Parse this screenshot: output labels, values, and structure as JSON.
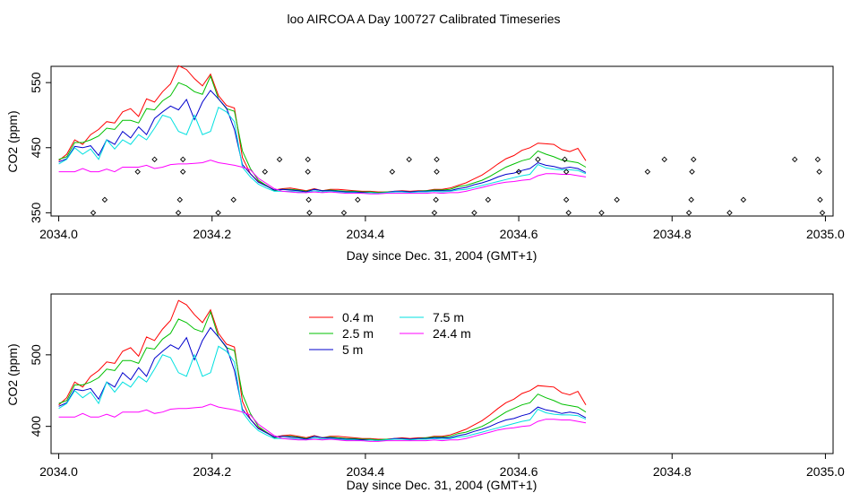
{
  "title": "loo AIRCOA A  Day 100727  Calibrated Timeseries",
  "chart_data": [
    {
      "type": "line",
      "xlabel": "Day since Dec. 31, 2004 (GMT+1)",
      "ylabel": "CO2 (ppm)",
      "xlim": [
        2033.99,
        2035.01
      ],
      "ylim": [
        345,
        575
      ],
      "x_ticks": [
        "2034.0",
        "2034.2",
        "2034.4",
        "2034.6",
        "2034.8",
        "2035.0"
      ],
      "y_ticks": [
        "350",
        "450",
        "550"
      ],
      "x_start": 2034.0,
      "x_step": 0.0104167,
      "series": [
        {
          "color": "#ff0000",
          "values": [
            430,
            440,
            462,
            455,
            470,
            478,
            490,
            488,
            505,
            510,
            498,
            525,
            520,
            536,
            548,
            576,
            570,
            556,
            545,
            563,
            530,
            515,
            511,
            435,
            410,
            398,
            392,
            385,
            387,
            388,
            386,
            384,
            387,
            384,
            386,
            386,
            385,
            384,
            383,
            383,
            382,
            382,
            383,
            384,
            383,
            384,
            384,
            386,
            386,
            388,
            392,
            396,
            402,
            408,
            416,
            425,
            433,
            438,
            446,
            450,
            457,
            456,
            455,
            447,
            444,
            449,
            430
          ]
        },
        {
          "color": "#00c000",
          "values": [
            432,
            436,
            458,
            458,
            462,
            468,
            480,
            478,
            492,
            492,
            488,
            510,
            508,
            522,
            530,
            550,
            545,
            536,
            532,
            560,
            525,
            510,
            506,
            445,
            418,
            400,
            392,
            384,
            386,
            386,
            385,
            383,
            386,
            384,
            385,
            384,
            383,
            383,
            382,
            382,
            381,
            382,
            382,
            383,
            382,
            383,
            384,
            385,
            385,
            386,
            390,
            392,
            396,
            400,
            406,
            413,
            420,
            425,
            430,
            433,
            445,
            440,
            436,
            431,
            429,
            427,
            420
          ]
        },
        {
          "color": "#0000cc",
          "values": [
            428,
            433,
            452,
            450,
            453,
            438,
            462,
            455,
            475,
            465,
            482,
            470,
            495,
            505,
            514,
            508,
            524,
            493,
            520,
            538,
            525,
            511,
            478,
            424,
            410,
            397,
            391,
            385,
            386,
            385,
            384,
            382,
            386,
            384,
            384,
            383,
            382,
            382,
            381,
            381,
            380,
            381,
            383,
            383,
            382,
            383,
            383,
            384,
            384,
            384,
            387,
            389,
            393,
            396,
            400,
            405,
            409,
            411,
            415,
            418,
            427,
            423,
            421,
            418,
            420,
            418,
            412
          ]
        },
        {
          "color": "#00e0e0",
          "values": [
            425,
            432,
            450,
            440,
            448,
            432,
            462,
            448,
            462,
            455,
            470,
            462,
            480,
            500,
            496,
            475,
            470,
            500,
            470,
            475,
            512,
            505,
            490,
            420,
            405,
            394,
            388,
            383,
            383,
            383,
            382,
            381,
            384,
            382,
            383,
            382,
            381,
            381,
            380,
            381,
            380,
            381,
            382,
            382,
            381,
            382,
            382,
            383,
            382,
            383,
            385,
            386,
            389,
            392,
            395,
            398,
            401,
            404,
            407,
            409,
            424,
            419,
            417,
            416,
            416,
            415,
            410
          ]
        },
        {
          "color": "#ff00ff",
          "values": [
            413,
            413,
            413,
            418,
            413,
            413,
            417,
            413,
            420,
            420,
            420,
            423,
            418,
            420,
            424,
            425,
            425,
            426,
            427,
            431,
            427,
            425,
            423,
            420,
            416,
            403,
            395,
            387,
            383,
            382,
            381,
            381,
            382,
            381,
            382,
            381,
            380,
            380,
            380,
            379,
            379,
            380,
            380,
            380,
            380,
            380,
            380,
            381,
            380,
            381,
            381,
            383,
            386,
            389,
            392,
            395,
            397,
            398,
            400,
            401,
            407,
            410,
            410,
            409,
            409,
            407,
            405
          ]
        }
      ],
      "markers": [
        {
          "x": 2034.045,
          "y": 350
        },
        {
          "x": 2034.06,
          "y": 370
        },
        {
          "x": 2034.103,
          "y": 413
        },
        {
          "x": 2034.125,
          "y": 432
        },
        {
          "x": 2034.156,
          "y": 350
        },
        {
          "x": 2034.158,
          "y": 370
        },
        {
          "x": 2034.162,
          "y": 432
        },
        {
          "x": 2034.162,
          "y": 413
        },
        {
          "x": 2034.208,
          "y": 350
        },
        {
          "x": 2034.228,
          "y": 370
        },
        {
          "x": 2034.269,
          "y": 413
        },
        {
          "x": 2034.288,
          "y": 432
        },
        {
          "x": 2034.325,
          "y": 413
        },
        {
          "x": 2034.325,
          "y": 432
        },
        {
          "x": 2034.326,
          "y": 370
        },
        {
          "x": 2034.327,
          "y": 350
        },
        {
          "x": 2034.372,
          "y": 350
        },
        {
          "x": 2034.39,
          "y": 370
        },
        {
          "x": 2034.435,
          "y": 413
        },
        {
          "x": 2034.457,
          "y": 432
        },
        {
          "x": 2034.493,
          "y": 413
        },
        {
          "x": 2034.493,
          "y": 432
        },
        {
          "x": 2034.492,
          "y": 370
        },
        {
          "x": 2034.49,
          "y": 350
        },
        {
          "x": 2034.542,
          "y": 350
        },
        {
          "x": 2034.56,
          "y": 370
        },
        {
          "x": 2034.6,
          "y": 413
        },
        {
          "x": 2034.625,
          "y": 432
        },
        {
          "x": 2034.66,
          "y": 432
        },
        {
          "x": 2034.662,
          "y": 413
        },
        {
          "x": 2034.662,
          "y": 370
        },
        {
          "x": 2034.665,
          "y": 350
        },
        {
          "x": 2034.708,
          "y": 350
        },
        {
          "x": 2034.728,
          "y": 370
        },
        {
          "x": 2034.768,
          "y": 413
        },
        {
          "x": 2034.79,
          "y": 432
        },
        {
          "x": 2034.826,
          "y": 413
        },
        {
          "x": 2034.828,
          "y": 432
        },
        {
          "x": 2034.825,
          "y": 370
        },
        {
          "x": 2034.822,
          "y": 350
        },
        {
          "x": 2034.875,
          "y": 350
        },
        {
          "x": 2034.893,
          "y": 370
        },
        {
          "x": 2034.96,
          "y": 432
        },
        {
          "x": 2034.99,
          "y": 432
        },
        {
          "x": 2034.992,
          "y": 413
        },
        {
          "x": 2034.993,
          "y": 370
        },
        {
          "x": 2034.996,
          "y": 350
        }
      ]
    },
    {
      "type": "line",
      "xlabel": "Day since Dec. 31, 2004 (GMT+1)",
      "ylabel": "CO2 (ppm)",
      "xlim": [
        2033.99,
        2035.01
      ],
      "ylim": [
        362,
        585
      ],
      "x_ticks": [
        "2034.0",
        "2034.2",
        "2034.4",
        "2034.6",
        "2034.8",
        "2035.0"
      ],
      "y_ticks": [
        "400",
        "500"
      ],
      "legend": {
        "placement": "top-center",
        "entries": [
          {
            "label": "0.4 m",
            "color": "#ff0000"
          },
          {
            "label": "2.5 m",
            "color": "#00c000"
          },
          {
            "label": "5 m",
            "color": "#0000cc"
          },
          {
            "label": "7.5 m",
            "color": "#00e0e0"
          },
          {
            "label": "24.4 m",
            "color": "#ff00ff"
          }
        ]
      },
      "series_ref": "same as chart_data[0].series"
    }
  ]
}
